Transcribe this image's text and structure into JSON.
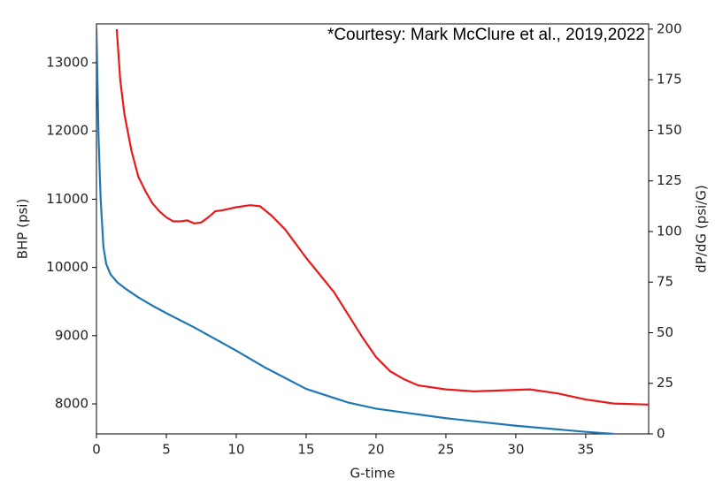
{
  "chart_data": {
    "type": "line",
    "annotation": "*Courtesy: Mark McClure et al., 2019,2022",
    "x_label": "G-time",
    "y_label": "BHP (psi)",
    "y2_label": "dP/dG (psi/G)",
    "xlim": [
      0,
      39.5
    ],
    "xticks": [
      0,
      5,
      10,
      15,
      20,
      25,
      30,
      35
    ],
    "ylim": [
      7560,
      13570
    ],
    "yticks": [
      8000,
      9000,
      10000,
      11000,
      12000,
      13000
    ],
    "y2lim": [
      0,
      202.6
    ],
    "y2ticks": [
      0,
      25,
      50,
      75,
      100,
      125,
      150,
      175,
      200
    ],
    "series": [
      {
        "color": "#1f77b4",
        "axis": "y",
        "x": [
          0,
          0.15,
          0.3,
          0.5,
          0.7,
          1,
          1.5,
          2,
          3,
          4,
          5,
          7,
          10,
          12,
          15,
          18,
          20,
          25,
          30,
          35,
          37
        ],
        "values": [
          13500,
          11900,
          11000,
          10300,
          10050,
          9900,
          9780,
          9700,
          9560,
          9440,
          9330,
          9120,
          8780,
          8540,
          8220,
          8020,
          7930,
          7790,
          7680,
          7590,
          7560
        ]
      },
      {
        "color": "#e8191b",
        "axis": "y2",
        "x": [
          1.45,
          1.7,
          2,
          2.5,
          3,
          3.5,
          4,
          4.5,
          5,
          5.5,
          6,
          6.5,
          7,
          7.5,
          8,
          8.5,
          9,
          10,
          11,
          11.7,
          12.5,
          13.5,
          15,
          17,
          19,
          20,
          21,
          22,
          23,
          25,
          27,
          29,
          31,
          33,
          35,
          37,
          39.5
        ],
        "values": [
          200,
          175,
          158,
          140,
          127,
          120,
          114,
          110,
          107,
          105,
          105,
          105.5,
          104,
          104.5,
          107,
          110,
          110.5,
          112,
          113,
          112.5,
          108,
          101,
          87,
          70,
          48,
          38,
          31,
          27,
          24,
          22,
          21,
          21.5,
          22,
          20,
          17,
          15,
          14.5
        ]
      }
    ]
  }
}
